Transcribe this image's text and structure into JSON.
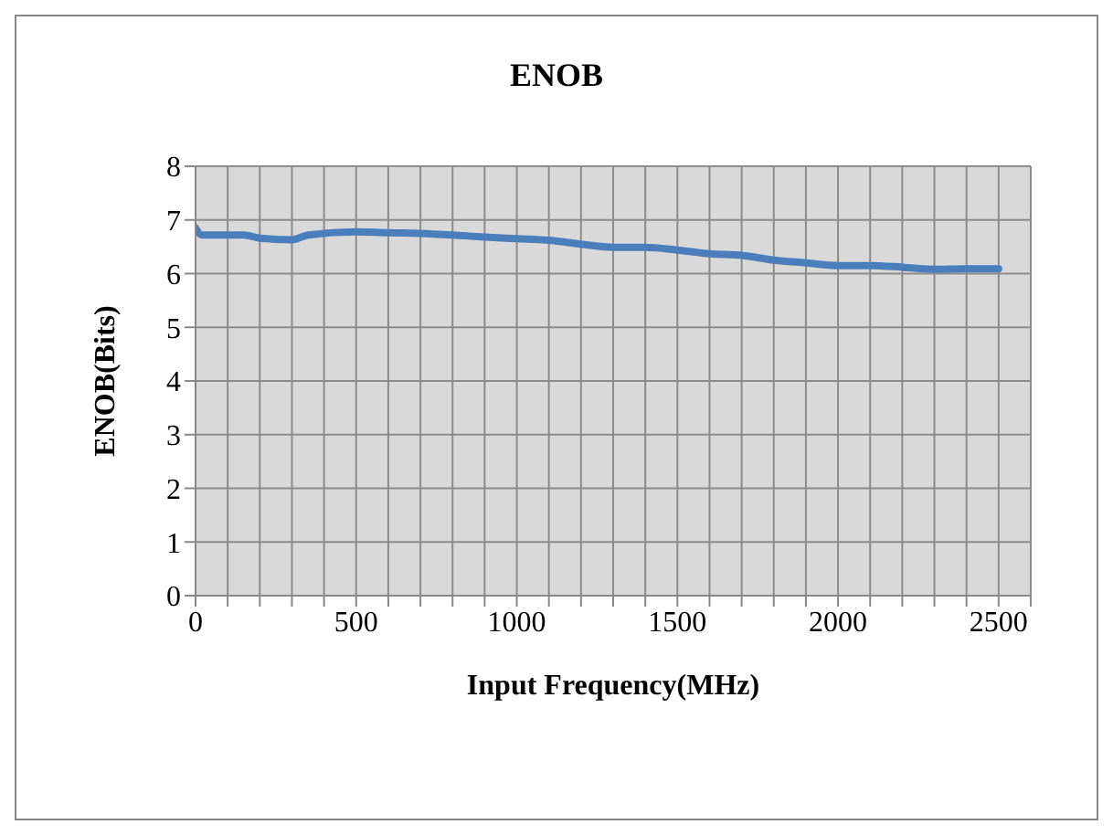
{
  "chart_data": {
    "type": "line",
    "title": "ENOB",
    "xlabel": "Input Frequency(MHz)",
    "ylabel": "ENOB(Bits)",
    "x": [
      0,
      20,
      100,
      150,
      200,
      300,
      350,
      500,
      600,
      700,
      800,
      900,
      1000,
      1100,
      1200,
      1300,
      1400,
      1500,
      1600,
      1700,
      1800,
      1900,
      2000,
      2100,
      2200,
      2300,
      2400,
      2500
    ],
    "series": [
      {
        "color": "#4a7ebb",
        "values": [
          6.85,
          6.72,
          6.72,
          6.72,
          6.66,
          6.63,
          6.72,
          6.78,
          6.76,
          6.75,
          6.72,
          6.68,
          6.65,
          6.62,
          6.55,
          6.49,
          6.49,
          6.44,
          6.37,
          6.34,
          6.25,
          6.2,
          6.15,
          6.15,
          6.12,
          6.08,
          6.09,
          6.09
        ]
      }
    ],
    "xlim": [
      0,
      2600
    ],
    "xticks": [
      0,
      {
        "value": 100,
        "label": null
      },
      {
        "value": 200,
        "label": null
      },
      {
        "value": 300,
        "label": null
      },
      {
        "value": 400,
        "label": null
      },
      500,
      {
        "value": 600,
        "label": null
      },
      {
        "value": 700,
        "label": null
      },
      {
        "value": 800,
        "label": null
      },
      {
        "value": 900,
        "label": null
      },
      1000,
      {
        "value": 1100,
        "label": null
      },
      {
        "value": 1200,
        "label": null
      },
      {
        "value": 1300,
        "label": null
      },
      {
        "value": 1400,
        "label": null
      },
      1500,
      {
        "value": 1600,
        "label": null
      },
      {
        "value": 1700,
        "label": null
      },
      {
        "value": 1800,
        "label": null
      },
      {
        "value": 1900,
        "label": null
      },
      2000,
      {
        "value": 2100,
        "label": null
      },
      {
        "value": 2200,
        "label": null
      },
      {
        "value": 2300,
        "label": null
      },
      {
        "value": 2400,
        "label": null
      },
      2500,
      {
        "value": 2600,
        "label": null
      }
    ],
    "ylim": [
      0,
      8
    ],
    "yticks": [
      0,
      1,
      2,
      3,
      4,
      5,
      6,
      7,
      8
    ],
    "grid": true,
    "legend": false,
    "marker": "none",
    "line_style": "solid"
  }
}
